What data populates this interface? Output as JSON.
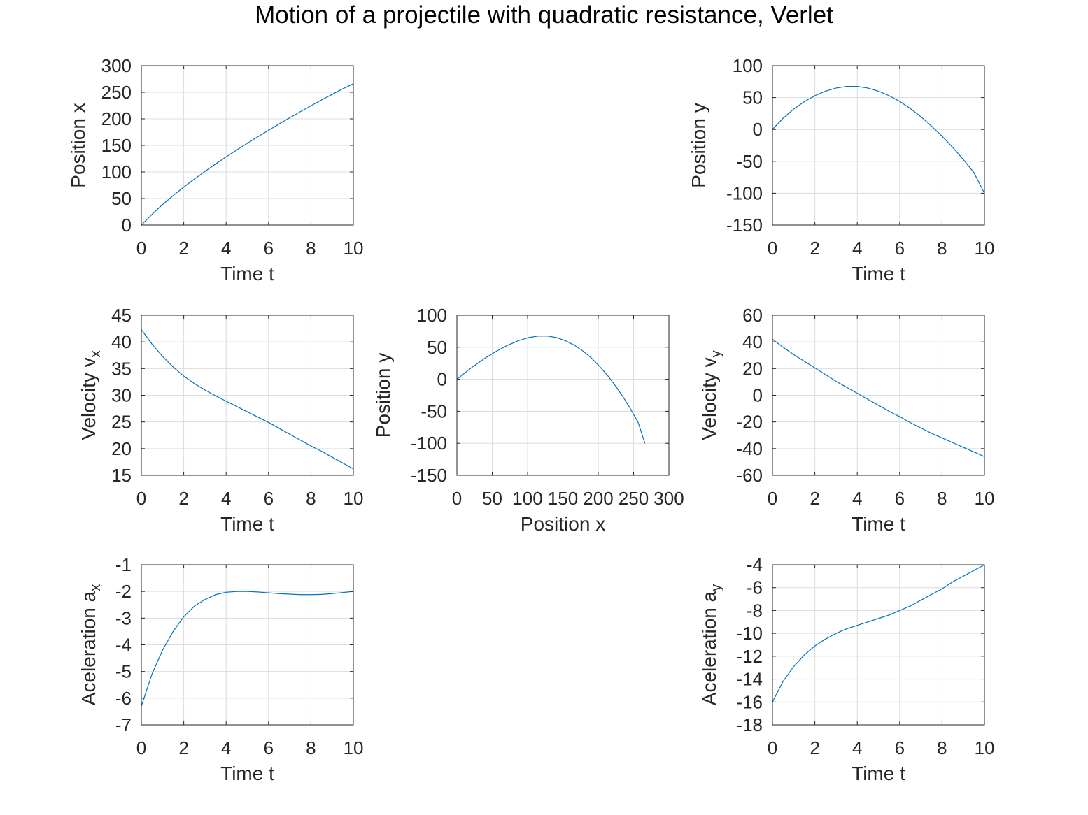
{
  "title": "Motion of a projectile with quadratic resistance, Verlet",
  "colors": {
    "line": "#0072bd",
    "grid": "#dcdcdc",
    "axis": "#262626",
    "background": "#ffffff"
  },
  "chart_data": [
    {
      "id": "x_t",
      "type": "line",
      "xlabel": "Time t",
      "ylabel": "Position x",
      "ylabel_sub": "",
      "xlim": [
        0,
        10
      ],
      "ylim": [
        0,
        300
      ],
      "xticks": [
        0,
        2,
        4,
        6,
        8,
        10
      ],
      "yticks": [
        0,
        50,
        100,
        150,
        200,
        250,
        300
      ],
      "grid": true,
      "x": [
        0,
        0.5,
        1,
        1.5,
        2,
        2.5,
        3,
        3.5,
        4,
        4.5,
        5,
        5.5,
        6,
        6.5,
        7,
        7.5,
        8,
        8.5,
        9,
        9.5,
        10
      ],
      "y": [
        0,
        20,
        38.5,
        55.5,
        71.5,
        86.5,
        101,
        115,
        128.5,
        141.5,
        154,
        166.5,
        178.5,
        190.5,
        202,
        213.5,
        224.5,
        235.5,
        246,
        256.5,
        266
      ]
    },
    {
      "id": "y_t",
      "type": "line",
      "xlabel": "Time t",
      "ylabel": "Position y",
      "ylabel_sub": "",
      "xlim": [
        0,
        10
      ],
      "ylim": [
        -150,
        100
      ],
      "xticks": [
        0,
        2,
        4,
        6,
        8,
        10
      ],
      "yticks": [
        -150,
        -100,
        -50,
        0,
        50,
        100
      ],
      "grid": true,
      "x": [
        0,
        0.5,
        1,
        1.5,
        2,
        2.5,
        3,
        3.5,
        4,
        4.5,
        5,
        5.5,
        6,
        6.5,
        7,
        7.5,
        8,
        8.5,
        9,
        9.5,
        10
      ],
      "y": [
        0,
        17.5,
        32,
        43.5,
        53,
        60,
        65,
        67.5,
        67.5,
        65,
        60,
        53,
        44,
        33,
        20,
        5.5,
        -10.5,
        -28,
        -47,
        -67.5,
        -100
      ]
    },
    {
      "id": "vx_t",
      "type": "line",
      "xlabel": "Time t",
      "ylabel": "Velocity v",
      "ylabel_sub": "x",
      "xlim": [
        0,
        10
      ],
      "ylim": [
        15,
        45
      ],
      "xticks": [
        0,
        2,
        4,
        6,
        8,
        10
      ],
      "yticks": [
        15,
        20,
        25,
        30,
        35,
        40,
        45
      ],
      "grid": true,
      "x": [
        0,
        0.5,
        1,
        1.5,
        2,
        2.5,
        3,
        3.5,
        4,
        4.5,
        5,
        5.5,
        6,
        6.5,
        7,
        7.5,
        8,
        8.5,
        9,
        9.5,
        10
      ],
      "y": [
        42.3,
        39.6,
        37.3,
        35.3,
        33.6,
        32.2,
        31,
        29.9,
        28.9,
        27.9,
        26.9,
        25.9,
        24.9,
        23.8,
        22.7,
        21.6,
        20.5,
        19.5,
        18.4,
        17.3,
        16.2
      ]
    },
    {
      "id": "y_x",
      "type": "line",
      "xlabel": "Position x",
      "ylabel": "Position y",
      "ylabel_sub": "",
      "xlim": [
        0,
        300
      ],
      "ylim": [
        -150,
        100
      ],
      "xticks": [
        0,
        50,
        100,
        150,
        200,
        250,
        300
      ],
      "yticks": [
        -150,
        -100,
        -50,
        0,
        50,
        100
      ],
      "grid": true,
      "x": [
        0,
        20,
        38.5,
        55.5,
        71.5,
        86.5,
        101,
        115,
        128.5,
        141.5,
        154,
        166.5,
        178.5,
        190.5,
        202,
        213.5,
        224.5,
        235.5,
        246,
        256.5,
        266
      ],
      "y": [
        0,
        17.5,
        32,
        43.5,
        53,
        60,
        65,
        67.5,
        67.5,
        65,
        60,
        53,
        44,
        33,
        20,
        5.5,
        -10.5,
        -28,
        -47,
        -67.5,
        -100
      ]
    },
    {
      "id": "vy_t",
      "type": "line",
      "xlabel": "Time t",
      "ylabel": "Velocity v",
      "ylabel_sub": "y",
      "xlim": [
        0,
        10
      ],
      "ylim": [
        -60,
        60
      ],
      "xticks": [
        0,
        2,
        4,
        6,
        8,
        10
      ],
      "yticks": [
        -60,
        -40,
        -20,
        0,
        20,
        40,
        60
      ],
      "grid": true,
      "x": [
        0,
        0.5,
        1,
        1.5,
        2,
        2.5,
        3,
        3.5,
        4,
        4.5,
        5,
        5.5,
        6,
        6.5,
        7,
        7.5,
        8,
        8.5,
        9,
        9.5,
        10
      ],
      "y": [
        42,
        36,
        30.5,
        25.5,
        20.5,
        15.5,
        10.5,
        6,
        1.5,
        -3,
        -7.5,
        -12,
        -16,
        -20.5,
        -24.5,
        -28.5,
        -32,
        -35.5,
        -39,
        -42.5,
        -46
      ]
    },
    {
      "id": "ax_t",
      "type": "line",
      "xlabel": "Time t",
      "ylabel": "Aceleration a",
      "ylabel_sub": "x",
      "xlim": [
        0,
        10
      ],
      "ylim": [
        -7,
        -1
      ],
      "xticks": [
        0,
        2,
        4,
        6,
        8,
        10
      ],
      "yticks": [
        -7,
        -6,
        -5,
        -4,
        -3,
        -2,
        -1
      ],
      "grid": true,
      "x": [
        0,
        0.5,
        1,
        1.5,
        2,
        2.5,
        3,
        3.5,
        4,
        4.5,
        5,
        5.5,
        6,
        6.5,
        7,
        7.5,
        8,
        8.5,
        9,
        9.5,
        10
      ],
      "y": [
        -6.3,
        -5.1,
        -4.2,
        -3.5,
        -2.95,
        -2.55,
        -2.3,
        -2.12,
        -2.03,
        -2.0,
        -2.0,
        -2.02,
        -2.05,
        -2.08,
        -2.1,
        -2.12,
        -2.12,
        -2.11,
        -2.08,
        -2.04,
        -2.0
      ]
    },
    {
      "id": "ay_t",
      "type": "line",
      "xlabel": "Time t",
      "ylabel": "Aceleration a",
      "ylabel_sub": "y",
      "xlim": [
        0,
        10
      ],
      "ylim": [
        -18,
        -4
      ],
      "xticks": [
        0,
        2,
        4,
        6,
        8,
        10
      ],
      "yticks": [
        -18,
        -16,
        -14,
        -12,
        -10,
        -8,
        -6,
        -4
      ],
      "grid": true,
      "x": [
        0,
        0.5,
        1,
        1.5,
        2,
        2.5,
        3,
        3.5,
        4,
        4.5,
        5,
        5.5,
        6,
        6.5,
        7,
        7.5,
        8,
        8.5,
        9,
        9.5,
        10
      ],
      "y": [
        -16,
        -14.2,
        -12.9,
        -11.9,
        -11.1,
        -10.5,
        -10.0,
        -9.6,
        -9.3,
        -9.0,
        -8.7,
        -8.4,
        -8.0,
        -7.6,
        -7.1,
        -6.6,
        -6.1,
        -5.5,
        -5.0,
        -4.5,
        -4.0
      ]
    }
  ]
}
